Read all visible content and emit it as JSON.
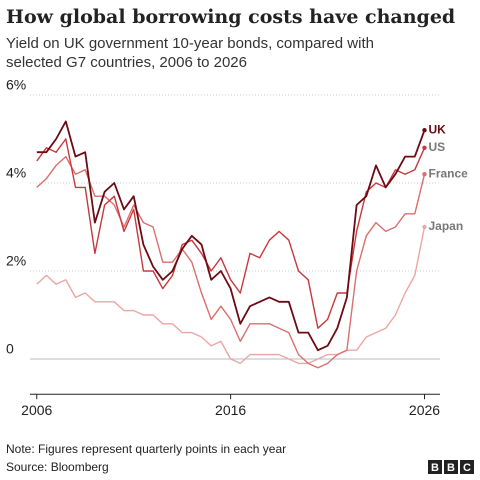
{
  "chart_data": {
    "type": "line",
    "title": "How global borrowing costs have changed",
    "subtitle": [
      "Yield on UK government 10-year bonds, compared with",
      "selected G7 countries, 2006 to 2026"
    ],
    "note": "Note: Figures represent quarterly points in each year",
    "source": "Source: Bloomberg",
    "logo": [
      "B",
      "B",
      "C"
    ],
    "x": [
      2006.0,
      2006.5,
      2007.0,
      2007.5,
      2008.0,
      2008.5,
      2009.0,
      2009.5,
      2010.0,
      2010.5,
      2011.0,
      2011.5,
      2012.0,
      2012.5,
      2013.0,
      2013.5,
      2014.0,
      2014.5,
      2015.0,
      2015.5,
      2016.0,
      2016.5,
      2017.0,
      2017.5,
      2018.0,
      2018.5,
      2019.0,
      2019.5,
      2020.0,
      2020.5,
      2021.0,
      2021.5,
      2022.0,
      2022.5,
      2023.0,
      2023.5,
      2024.0,
      2024.5,
      2025.0,
      2025.5,
      2026.0
    ],
    "xlim": [
      2005.6,
      2026.8
    ],
    "xticks": [
      2006,
      2016,
      2026
    ],
    "ylim": [
      -0.8,
      6.2
    ],
    "yticks": [
      0,
      {
        "value": 2,
        "label": "2%"
      },
      {
        "value": 4,
        "label": "4%"
      },
      {
        "value": 6,
        "label": "6%"
      }
    ],
    "grid": true,
    "series": [
      {
        "name": "Japan",
        "color": "#eba6a4",
        "values": [
          1.7,
          1.9,
          1.7,
          1.8,
          1.4,
          1.5,
          1.3,
          1.3,
          1.3,
          1.1,
          1.1,
          1.0,
          1.0,
          0.8,
          0.8,
          0.6,
          0.6,
          0.5,
          0.3,
          0.4,
          0.0,
          -0.1,
          0.1,
          0.1,
          0.1,
          0.1,
          0.0,
          -0.1,
          -0.1,
          0.0,
          0.1,
          0.1,
          0.2,
          0.2,
          0.5,
          0.6,
          0.7,
          1.0,
          1.5,
          1.9,
          3.0
        ]
      },
      {
        "name": "France",
        "color": "#dc6e6c",
        "values": [
          3.9,
          4.1,
          4.4,
          4.6,
          4.2,
          4.3,
          3.7,
          3.7,
          3.5,
          3.0,
          3.5,
          3.1,
          3.0,
          2.2,
          2.2,
          2.5,
          2.2,
          1.5,
          0.9,
          1.2,
          0.9,
          0.4,
          0.8,
          0.8,
          0.8,
          0.7,
          0.6,
          0.1,
          -0.1,
          -0.2,
          -0.1,
          0.1,
          0.2,
          2.0,
          2.8,
          3.1,
          2.9,
          3.0,
          3.3,
          3.3,
          4.2
        ]
      },
      {
        "name": "US",
        "color": "#c8383c",
        "values": [
          4.5,
          4.8,
          4.7,
          5.0,
          3.9,
          3.9,
          2.4,
          3.5,
          3.7,
          2.9,
          3.4,
          2.0,
          2.0,
          1.6,
          1.9,
          2.6,
          2.7,
          2.4,
          2.0,
          2.3,
          1.8,
          1.5,
          2.4,
          2.3,
          2.7,
          2.9,
          2.7,
          2.0,
          1.8,
          0.7,
          0.9,
          1.5,
          1.5,
          2.9,
          3.8,
          4.0,
          3.9,
          4.3,
          4.2,
          4.3,
          4.8
        ]
      },
      {
        "name": "UK",
        "color": "#6b0b14",
        "values": [
          4.7,
          4.7,
          5.0,
          5.4,
          4.6,
          4.7,
          3.1,
          3.8,
          4.0,
          3.4,
          3.7,
          2.6,
          2.1,
          1.8,
          2.0,
          2.5,
          2.8,
          2.6,
          1.8,
          2.0,
          1.6,
          0.8,
          1.2,
          1.3,
          1.4,
          1.3,
          1.3,
          0.6,
          0.6,
          0.2,
          0.3,
          0.7,
          1.4,
          3.5,
          3.7,
          4.4,
          3.9,
          4.2,
          4.6,
          4.6,
          5.2
        ]
      }
    ]
  }
}
